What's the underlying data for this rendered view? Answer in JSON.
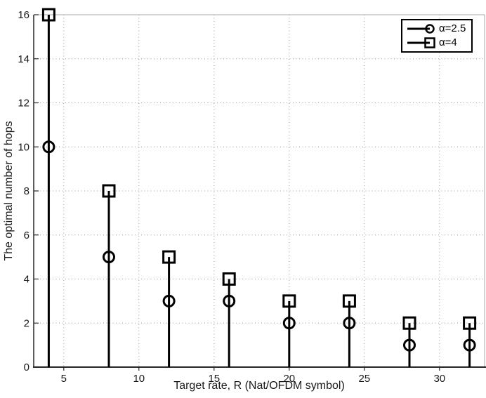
{
  "figure": {
    "background": "#ffffff"
  },
  "chart_data": {
    "type": "stem",
    "x": [
      4,
      8,
      12,
      16,
      20,
      24,
      28,
      32
    ],
    "series": [
      {
        "name": "α=2.5",
        "marker": "circle",
        "values": [
          10,
          5,
          3,
          3,
          2,
          2,
          1,
          1
        ]
      },
      {
        "name": "α=4",
        "marker": "square",
        "values": [
          16,
          8,
          5,
          4,
          3,
          3,
          2,
          2
        ]
      }
    ],
    "title": "",
    "xlabel": "Target rate, R (Nat/OFDM symbol)",
    "ylabel": "The optimal number of hops",
    "xlim": [
      3,
      33
    ],
    "ylim": [
      0,
      16
    ],
    "xticks": [
      5,
      10,
      15,
      20,
      25,
      30
    ],
    "yticks": [
      0,
      2,
      4,
      6,
      8,
      10,
      12,
      14,
      16
    ],
    "grid": true,
    "grid_style": "dotted",
    "legend_position": "top-right",
    "colors": {
      "stem": "#000000",
      "marker": "#000000",
      "grid": "#999999",
      "axis": "#262626",
      "frame_light": "#aaaaaa",
      "text": "#1a1a1a",
      "background": "#ffffff"
    }
  }
}
